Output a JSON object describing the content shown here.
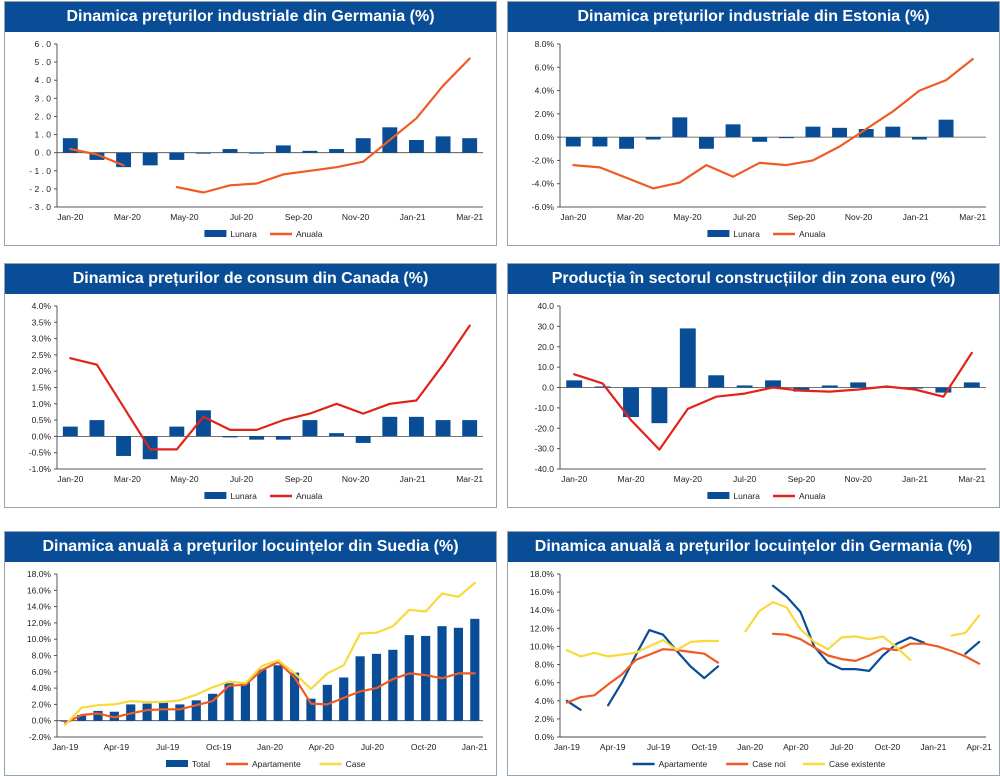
{
  "colors": {
    "title_bg": "#0a4d97",
    "bar": "#0a4d97",
    "line_orange": "#ef5b24",
    "line_red": "#e0231b",
    "line_yellow": "#f8d93e"
  },
  "chart_data": [
    {
      "type": "bar+line",
      "title": "Dinamica prețurilor industriale din Germania (%)",
      "ylim": [
        -3,
        6
      ],
      "ystep": 1,
      "ytick_format": "spaced1",
      "grid": false,
      "x_ticks": [
        "Jan-20",
        "Mar-20",
        "May-20",
        "Jul-20",
        "Sep-20",
        "Nov-20",
        "Jan-21",
        "Mar-21"
      ],
      "bar_series": {
        "name": "Lunara",
        "color": "#0a4d97",
        "values": [
          0.8,
          -0.4,
          -0.8,
          -0.7,
          -0.4,
          0.0,
          0.2,
          0.0,
          0.4,
          0.1,
          0.2,
          0.8,
          1.4,
          0.7,
          0.9,
          0.8
        ]
      },
      "line_series": [
        {
          "name": "Anuala",
          "color": "#ef5b24",
          "values": [
            0.2,
            -0.1,
            -0.7,
            null,
            -1.9,
            -2.2,
            -1.8,
            -1.7,
            -1.2,
            -1.0,
            -0.8,
            -0.5,
            0.7,
            1.9,
            3.7,
            5.2
          ]
        }
      ],
      "legend": [
        "Lunara",
        "Anuala"
      ]
    },
    {
      "type": "bar+line",
      "title": "Dinamica prețurilor industriale din Estonia (%)",
      "ylim": [
        -6,
        8
      ],
      "ystep": 2,
      "ytick_format": "pct1",
      "grid": false,
      "x_ticks": [
        "Jan-20",
        "Mar-20",
        "May-20",
        "Jul-20",
        "Sep-20",
        "Nov-20",
        "Jan-21",
        "Mar-21"
      ],
      "bar_series": {
        "name": "Lunara",
        "color": "#0a4d97",
        "values": [
          -0.8,
          -0.8,
          -1.0,
          -0.2,
          1.7,
          -1.0,
          1.1,
          -0.4,
          0.0,
          0.9,
          0.8,
          0.7,
          0.9,
          -0.2,
          1.5
        ]
      },
      "line_series": [
        {
          "name": "Anuala",
          "color": "#ef5b24",
          "values": [
            -2.4,
            -2.6,
            -3.5,
            -4.4,
            -3.9,
            -2.4,
            -3.4,
            -2.2,
            -2.4,
            -2.0,
            -0.8,
            0.7,
            2.2,
            4.0,
            4.9,
            6.7
          ]
        }
      ],
      "legend": [
        "Lunara",
        "Anuala"
      ]
    },
    {
      "type": "bar+line",
      "title": "Dinamica prețurilor de consum din Canada (%)",
      "ylim": [
        -1,
        4
      ],
      "ystep": 0.5,
      "ytick_format": "pct1",
      "grid": false,
      "x_ticks": [
        "Jan-20",
        "Mar-20",
        "May-20",
        "Jul-20",
        "Sep-20",
        "Nov-20",
        "Jan-21",
        "Mar-21"
      ],
      "bar_series": {
        "name": "Lunara",
        "color": "#0a4d97",
        "values": [
          0.3,
          0.5,
          -0.6,
          -0.7,
          0.3,
          0.8,
          0.0,
          -0.1,
          -0.1,
          0.5,
          0.1,
          -0.2,
          0.6,
          0.6,
          0.5,
          0.5
        ]
      },
      "line_series": [
        {
          "name": "Anuala",
          "color": "#e0231b",
          "values": [
            2.4,
            2.2,
            0.9,
            -0.4,
            -0.4,
            0.6,
            0.2,
            0.2,
            0.5,
            0.7,
            1.0,
            0.7,
            1.0,
            1.1,
            2.2,
            3.4
          ]
        }
      ],
      "legend": [
        "Lunara",
        "Anuala"
      ]
    },
    {
      "type": "bar+line",
      "title": "Producția în sectorul construcțiilor din zona euro (%)",
      "ylim": [
        -40,
        40
      ],
      "ystep": 10,
      "ytick_format": "fix1",
      "grid": false,
      "x_ticks": [
        "Jan-20",
        "Mar-20",
        "May-20",
        "Jul-20",
        "Sep-20",
        "Nov-20",
        "Jan-21",
        "Mar-21"
      ],
      "bar_series": {
        "name": "Lunara",
        "color": "#0a4d97",
        "values": [
          3.5,
          0.5,
          -14.5,
          -17.5,
          29.0,
          6.0,
          1.0,
          3.5,
          -2.0,
          1.0,
          2.5,
          0.5,
          0.0,
          -2.5,
          2.5
        ]
      },
      "line_series": [
        {
          "name": "Anuala",
          "color": "#e0231b",
          "values": [
            6.5,
            2.0,
            -16.0,
            -30.5,
            -10.5,
            -4.5,
            -3.0,
            0.0,
            -1.5,
            -2.0,
            -1.0,
            0.5,
            -1.0,
            -4.5,
            17.0
          ]
        }
      ],
      "legend": [
        "Lunara",
        "Anuala"
      ]
    },
    {
      "type": "bar+line",
      "title": "Dinamica anuală a prețurilor locuințelor din Suedia (%)",
      "ylim": [
        -2,
        18
      ],
      "ystep": 2,
      "ytick_format": "pct1",
      "grid": false,
      "x_ticks": [
        "Jan-19",
        "Apr-19",
        "Jul-19",
        "Oct-19",
        "Jan-20",
        "Apr-20",
        "Jul-20",
        "Oct-20",
        "Jan-21"
      ],
      "bar_series": {
        "name": "Total",
        "color": "#0a4d97",
        "values": [
          0.0,
          0.7,
          1.2,
          1.1,
          2.0,
          2.1,
          2.2,
          2.0,
          2.5,
          3.3,
          4.6,
          4.7,
          6.3,
          6.8,
          5.9,
          2.7,
          4.4,
          5.3,
          7.9,
          8.2,
          8.7,
          10.5,
          10.4,
          11.6,
          11.4,
          12.5
        ]
      },
      "line_series": [
        {
          "name": "Apartamente",
          "color": "#ef5b24",
          "values": [
            -0.3,
            0.7,
            0.9,
            0.4,
            0.9,
            1.3,
            1.4,
            1.4,
            1.9,
            2.4,
            4.3,
            4.4,
            6.2,
            7.2,
            5.3,
            2.1,
            2.0,
            2.8,
            3.6,
            4.0,
            5.1,
            5.8,
            5.6,
            5.2,
            5.8,
            5.8
          ]
        },
        {
          "name": "Case",
          "color": "#f8d93e",
          "values": [
            -0.5,
            1.6,
            1.9,
            2.0,
            2.4,
            2.3,
            2.3,
            2.5,
            3.2,
            4.1,
            4.8,
            4.6,
            6.7,
            7.4,
            5.8,
            3.9,
            5.8,
            6.8,
            10.7,
            10.8,
            11.6,
            13.6,
            13.4,
            15.6,
            15.2,
            16.9
          ]
        }
      ],
      "legend": [
        "Total",
        "Apartamente",
        "Case"
      ]
    },
    {
      "type": "line",
      "title": "Dinamica anuală a prețurilor locuințelor din Germania (%)",
      "ylim": [
        0,
        18
      ],
      "ystep": 2,
      "ytick_format": "pct1",
      "grid": false,
      "x_ticks": [
        "Jan-19",
        "Apr-19",
        "Jul-19",
        "Oct-19",
        "Jan-20",
        "Apr-20",
        "Jul-20",
        "Oct-20",
        "Jan-21",
        "Apr-21"
      ],
      "line_series": [
        {
          "name": "Apartamente",
          "color": "#0a4d97",
          "values": [
            4.0,
            3.0,
            null,
            3.5,
            6.0,
            9.0,
            11.8,
            11.3,
            9.5,
            7.8,
            6.5,
            7.8,
            null,
            null,
            null,
            16.7,
            15.5,
            13.8,
            10.0,
            8.2,
            7.5,
            7.5,
            7.3,
            9.0,
            10.3,
            11.0,
            10.4,
            null,
            null,
            9.2,
            10.5
          ]
        },
        {
          "name": "Case noi",
          "color": "#ef5b24",
          "values": [
            3.8,
            4.4,
            4.6,
            5.8,
            6.9,
            8.5,
            9.1,
            9.7,
            9.6,
            9.4,
            9.2,
            8.2,
            null,
            null,
            null,
            11.4,
            11.3,
            10.8,
            9.9,
            9.0,
            8.6,
            8.4,
            9.0,
            9.8,
            9.6,
            10.3,
            10.3,
            10.0,
            9.5,
            8.9,
            8.1
          ]
        },
        {
          "name": "Case existente",
          "color": "#f8d93e",
          "values": [
            9.6,
            8.9,
            9.3,
            8.9,
            9.1,
            9.3,
            10.0,
            10.7,
            9.6,
            10.5,
            10.6,
            10.6,
            null,
            11.7,
            13.9,
            14.9,
            14.3,
            11.9,
            10.5,
            9.7,
            11.0,
            11.1,
            10.8,
            11.1,
            9.9,
            8.5,
            null,
            null,
            11.2,
            11.5,
            13.4
          ]
        }
      ],
      "legend": [
        "Apartamente",
        "Case noi",
        "Case existente"
      ]
    }
  ]
}
